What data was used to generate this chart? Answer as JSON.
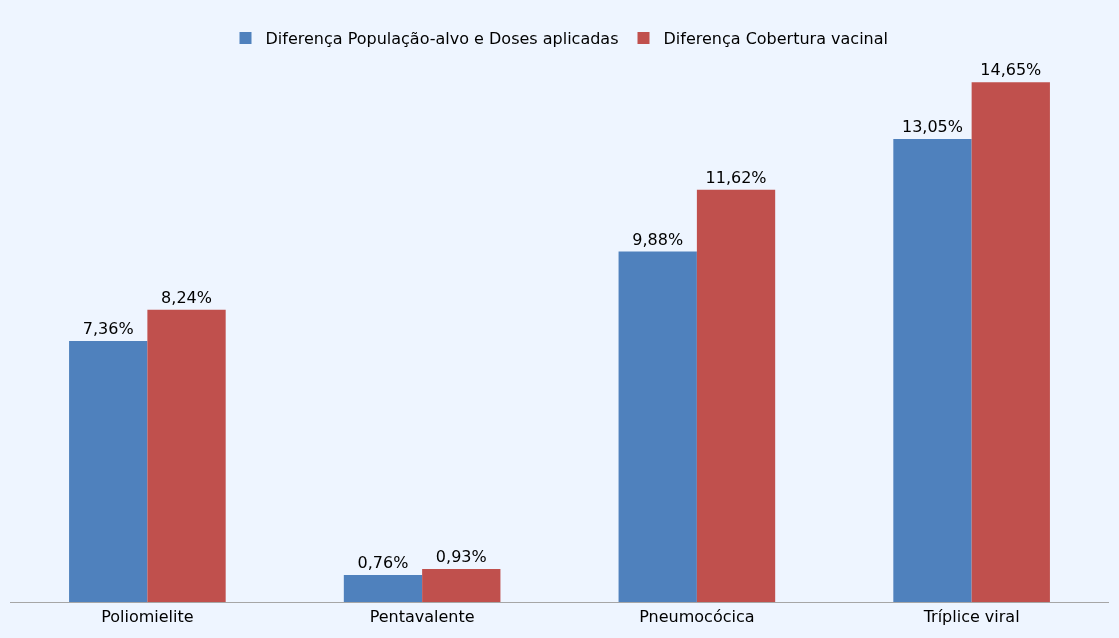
{
  "chart_data": {
    "type": "bar",
    "categories": [
      "Poliomielite",
      "Pentavalente",
      "Pneumocócica",
      "Tríplice viral"
    ],
    "series": [
      {
        "name": "Diferença População-alvo e Doses aplicadas",
        "color": "#4f81bd",
        "values": [
          7.36,
          0.76,
          9.88,
          13.05
        ],
        "value_labels": [
          "7,36%",
          "0,76%",
          "9,88%",
          "13,05%"
        ]
      },
      {
        "name": "Diferença Cobertura vacinal",
        "color": "#c0504d",
        "values": [
          8.24,
          0.93,
          11.62,
          14.65
        ],
        "value_labels": [
          "8,24%",
          "0,93%",
          "11,62%",
          "14,65%"
        ]
      }
    ],
    "legend": "top"
  }
}
